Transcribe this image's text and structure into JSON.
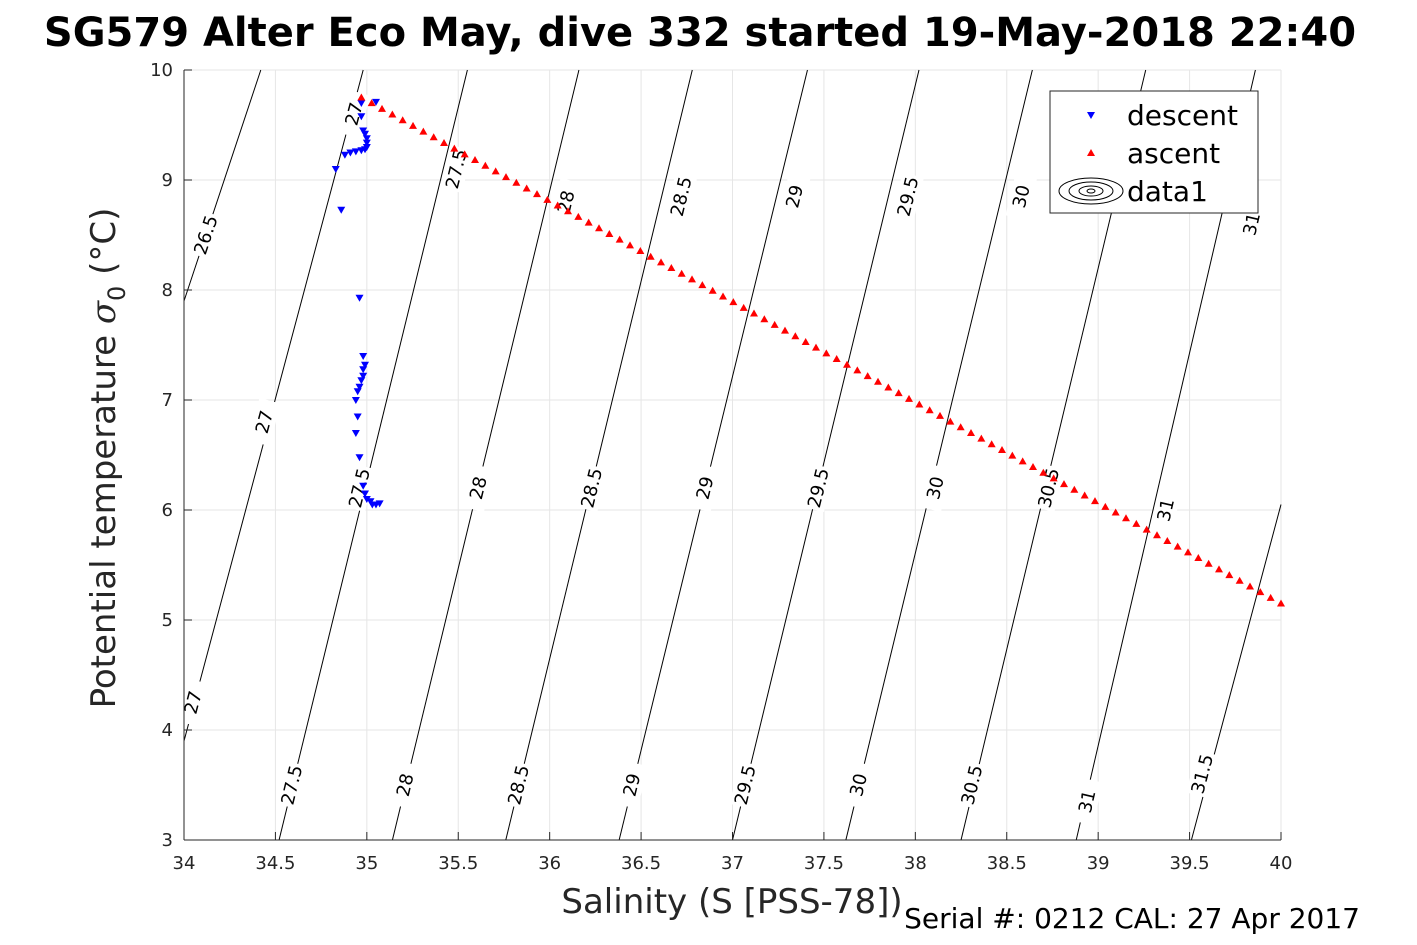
{
  "figure": {
    "title": "SG579 Alter Eco May, dive 332 started 19-May-2018 22:40",
    "footer": "Serial #: 0212  CAL: 27 Apr 2017"
  },
  "chart_data": {
    "type": "scatter",
    "xlabel": "Salinity (S [PSS-78])",
    "ylabel_main": "Potential temperature ",
    "ylabel_sym": "σ",
    "ylabel_sub": "0",
    "ylabel_unit": " (°C)",
    "xlim": [
      34,
      40
    ],
    "ylim": [
      3,
      10
    ],
    "xticks": [
      34,
      34.5,
      35,
      35.5,
      36,
      36.5,
      37,
      37.5,
      38,
      38.5,
      39,
      39.5,
      40
    ],
    "yticks": [
      3,
      4,
      5,
      6,
      7,
      8,
      9,
      10
    ],
    "grid": true,
    "legend_position": "top-right",
    "series": [
      {
        "name": "descent",
        "marker": "triangle-down",
        "color": "#0000ff",
        "points": [
          [
            35.03,
            6.05
          ],
          [
            35.05,
            6.05
          ],
          [
            35.07,
            6.06
          ],
          [
            35.02,
            6.08
          ],
          [
            35.0,
            6.1
          ],
          [
            34.99,
            6.15
          ],
          [
            34.98,
            6.22
          ],
          [
            34.96,
            6.48
          ],
          [
            34.94,
            6.7
          ],
          [
            34.95,
            6.85
          ],
          [
            34.94,
            7.0
          ],
          [
            34.95,
            7.08
          ],
          [
            34.96,
            7.12
          ],
          [
            34.97,
            7.18
          ],
          [
            34.98,
            7.22
          ],
          [
            34.98,
            7.28
          ],
          [
            34.99,
            7.32
          ],
          [
            34.98,
            7.4
          ],
          [
            34.96,
            7.93
          ],
          [
            34.86,
            8.73
          ],
          [
            34.83,
            9.1
          ],
          [
            34.88,
            9.23
          ],
          [
            34.91,
            9.25
          ],
          [
            34.94,
            9.26
          ],
          [
            34.97,
            9.27
          ],
          [
            34.99,
            9.28
          ],
          [
            35.0,
            9.3
          ],
          [
            35.0,
            9.34
          ],
          [
            35.0,
            9.38
          ],
          [
            34.99,
            9.42
          ],
          [
            34.98,
            9.45
          ],
          [
            34.97,
            9.58
          ],
          [
            34.97,
            9.7
          ],
          [
            35.05,
            9.71
          ]
        ]
      },
      {
        "name": "ascent",
        "marker": "triangle-up",
        "color": "#ff0000",
        "x_start": 34.97,
        "y_start": 9.75,
        "x_end": 40.0,
        "y_end": 5.15,
        "count": 90
      },
      {
        "name": "data1",
        "marker": "contour",
        "color": "#000000",
        "contour_levels": [
          26.5,
          27,
          27.5,
          28,
          28.5,
          29,
          29.5,
          30,
          30.5,
          31,
          31.5
        ],
        "contour_lines": [
          {
            "points": [
              [
                34.0,
                7.9
              ],
              [
                34.42,
                10.0
              ]
            ],
            "labels": [
              {
                "text": "26.5",
                "at": [
                  34.12,
                  8.5
                ]
              }
            ]
          },
          {
            "points": [
              [
                34.0,
                3.9
              ],
              [
                34.98,
                10.0
              ]
            ],
            "labels": [
              {
                "text": "27",
                "at": [
                  34.05,
                  4.25
                ]
              },
              {
                "text": "27",
                "at": [
                  34.44,
                  6.8
                ]
              },
              {
                "text": "27",
                "at": [
                  34.93,
                  9.6
                ]
              }
            ]
          },
          {
            "points": [
              [
                34.52,
                3.0
              ],
              [
                35.55,
                10.0
              ]
            ],
            "labels": [
              {
                "text": "27.5",
                "at": [
                  34.59,
                  3.5
                ]
              },
              {
                "text": "27.5",
                "at": [
                  34.96,
                  6.2
                ]
              },
              {
                "text": "27.5",
                "at": [
                  35.49,
                  9.1
                ]
              }
            ]
          },
          {
            "points": [
              [
                35.14,
                3.0
              ],
              [
                36.16,
                10.0
              ]
            ],
            "labels": [
              {
                "text": "28",
                "at": [
                  35.21,
                  3.5
                ]
              },
              {
                "text": "28",
                "at": [
                  35.61,
                  6.2
                ]
              },
              {
                "text": "28",
                "at": [
                  36.09,
                  8.8
                ]
              }
            ]
          },
          {
            "points": [
              [
                35.76,
                3.0
              ],
              [
                36.78,
                10.0
              ]
            ],
            "labels": [
              {
                "text": "28.5",
                "at": [
                  35.83,
                  3.5
                ]
              },
              {
                "text": "28.5",
                "at": [
                  36.23,
                  6.2
                ]
              },
              {
                "text": "28.5",
                "at": [
                  36.72,
                  8.85
                ]
              }
            ]
          },
          {
            "points": [
              [
                36.38,
                3.0
              ],
              [
                37.41,
                10.0
              ]
            ],
            "labels": [
              {
                "text": "29",
                "at": [
                  36.45,
                  3.5
                ]
              },
              {
                "text": "29",
                "at": [
                  36.85,
                  6.2
                ]
              },
              {
                "text": "29",
                "at": [
                  37.34,
                  8.85
                ]
              }
            ]
          },
          {
            "points": [
              [
                37.0,
                3.0
              ],
              [
                38.02,
                10.0
              ]
            ],
            "labels": [
              {
                "text": "29.5",
                "at": [
                  37.07,
                  3.5
                ]
              },
              {
                "text": "29.5",
                "at": [
                  37.47,
                  6.2
                ]
              },
              {
                "text": "29.5",
                "at": [
                  37.96,
                  8.85
                ]
              }
            ]
          },
          {
            "points": [
              [
                37.62,
                3.0
              ],
              [
                38.64,
                10.0
              ]
            ],
            "labels": [
              {
                "text": "30",
                "at": [
                  37.69,
                  3.5
                ]
              },
              {
                "text": "30",
                "at": [
                  38.11,
                  6.2
                ]
              },
              {
                "text": "30",
                "at": [
                  38.58,
                  8.85
                ]
              }
            ]
          },
          {
            "points": [
              [
                38.25,
                3.0
              ],
              [
                39.26,
                10.0
              ]
            ],
            "labels": [
              {
                "text": "30.5",
                "at": [
                  38.31,
                  3.5
                ]
              },
              {
                "text": "30.5",
                "at": [
                  38.73,
                  6.2
                ]
              }
            ]
          },
          {
            "points": [
              [
                38.88,
                3.0
              ],
              [
                39.86,
                10.0
              ]
            ],
            "labels": [
              {
                "text": "31",
                "at": [
                  38.94,
                  3.35
                ]
              },
              {
                "text": "31",
                "at": [
                  39.37,
                  6.0
                ]
              },
              {
                "text": "31",
                "at": [
                  39.84,
                  8.6
                ]
              }
            ]
          },
          {
            "points": [
              [
                39.51,
                3.0
              ],
              [
                40.0,
                6.05
              ]
            ],
            "labels": [
              {
                "text": "31.5",
                "at": [
                  39.57,
                  3.6
                ]
              }
            ]
          }
        ]
      }
    ]
  },
  "legend": {
    "items": [
      {
        "label": "descent"
      },
      {
        "label": "ascent"
      },
      {
        "label": "data1"
      }
    ]
  }
}
